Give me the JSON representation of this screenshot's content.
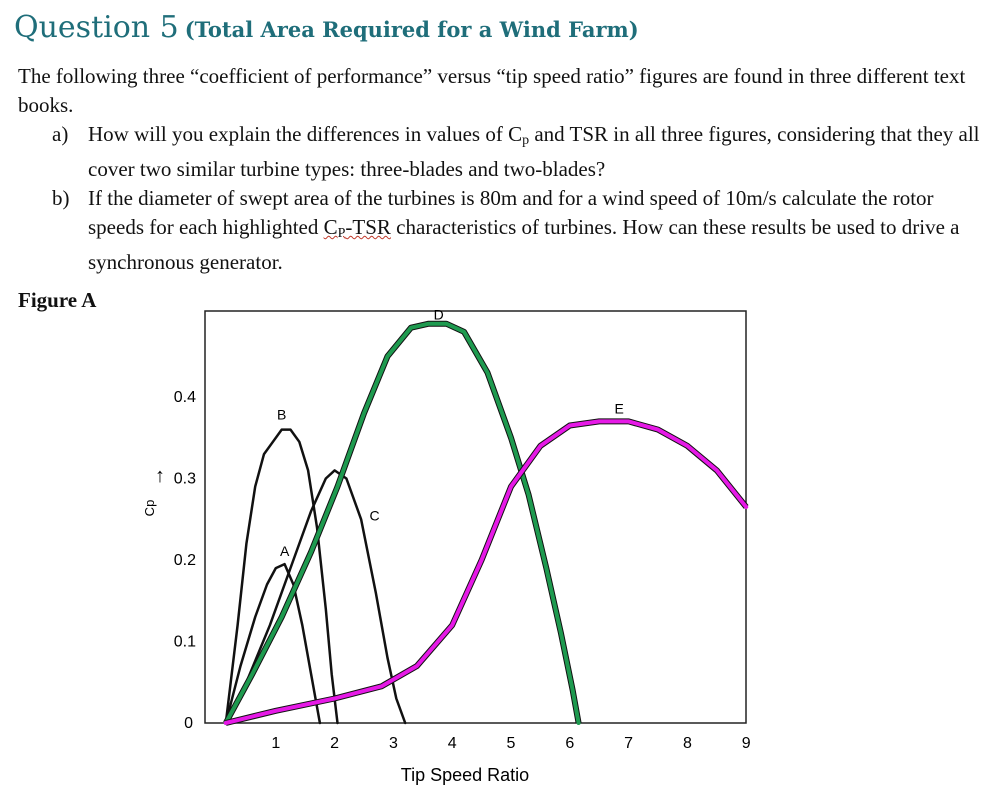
{
  "header": {
    "title": "Question 5",
    "subtitle": "(Total Area Required for a Wind Farm)"
  },
  "intro": "The following three “coefficient of performance” versus “tip speed ratio” figures are found in three different text books.",
  "items": [
    {
      "marker": "a)",
      "text_before": "How will you explain the differences in values of C",
      "sub": "p",
      "text_after": " and TSR in all three figures, considering that they all cover two similar turbine types: three-blades and two-blades?"
    },
    {
      "marker": "b)",
      "text_before": "If the diameter of swept area of the turbines is 80m and for a wind speed of 10m/s calculate the rotor speeds for each highlighted ",
      "squiggle_c": "C",
      "squiggle_sub": "P",
      "squiggle_after": "-TSR",
      "text_after": " characteristics of turbines. How can these results be used to drive a synchronous generator."
    }
  ],
  "figure_label": "Figure A",
  "chart_data": {
    "type": "line",
    "xlabel": "Tip Speed Ratio",
    "ylabel": "Cp",
    "xlim": [
      0,
      9
    ],
    "ylim": [
      0,
      0.52
    ],
    "x_ticks": [
      "1",
      "2",
      "3",
      "4",
      "5",
      "6",
      "7",
      "8",
      "9"
    ],
    "y_ticks": [
      "0",
      "0.1",
      "0.2",
      "0.3",
      "0.4"
    ],
    "series": [
      {
        "name": "A",
        "color": "#111111",
        "x": [
          0.15,
          0.4,
          0.65,
          0.85,
          1.0,
          1.15,
          1.3,
          1.45,
          1.6,
          1.75
        ],
        "y": [
          0.0,
          0.07,
          0.13,
          0.17,
          0.19,
          0.195,
          0.17,
          0.12,
          0.06,
          0.0
        ]
      },
      {
        "name": "B",
        "color": "#111111",
        "x": [
          0.15,
          0.35,
          0.5,
          0.65,
          0.8,
          0.95,
          1.1,
          1.25,
          1.4,
          1.55,
          1.7,
          1.85,
          1.95,
          2.05
        ],
        "y": [
          0.0,
          0.12,
          0.22,
          0.29,
          0.33,
          0.345,
          0.36,
          0.36,
          0.345,
          0.31,
          0.24,
          0.14,
          0.06,
          0.0
        ]
      },
      {
        "name": "C",
        "color": "#111111",
        "x": [
          0.15,
          0.5,
          0.9,
          1.3,
          1.6,
          1.85,
          2.0,
          2.2,
          2.45,
          2.7,
          2.9,
          3.05,
          3.2
        ],
        "y": [
          0.0,
          0.05,
          0.12,
          0.2,
          0.26,
          0.3,
          0.31,
          0.3,
          0.25,
          0.16,
          0.08,
          0.03,
          0.0
        ]
      },
      {
        "name": "D",
        "color": "#1e9a4f",
        "x": [
          0.15,
          0.6,
          1.1,
          1.6,
          2.05,
          2.5,
          2.9,
          3.3,
          3.6,
          3.9,
          4.2,
          4.6,
          5.0,
          5.3,
          5.6,
          5.85,
          6.05,
          6.15
        ],
        "y": [
          0.0,
          0.06,
          0.13,
          0.21,
          0.29,
          0.38,
          0.45,
          0.485,
          0.49,
          0.49,
          0.48,
          0.43,
          0.35,
          0.28,
          0.19,
          0.11,
          0.04,
          0.0
        ]
      },
      {
        "name": "E",
        "color": "#e619e6",
        "x": [
          0.15,
          1.0,
          2.0,
          2.8,
          3.4,
          4.0,
          4.5,
          5.0,
          5.5,
          6.0,
          6.5,
          7.0,
          7.5,
          8.0,
          8.5,
          9.0
        ],
        "y": [
          0.0,
          0.015,
          0.03,
          0.045,
          0.07,
          0.12,
          0.2,
          0.29,
          0.34,
          0.365,
          0.37,
          0.37,
          0.36,
          0.34,
          0.31,
          0.265
        ]
      }
    ]
  }
}
